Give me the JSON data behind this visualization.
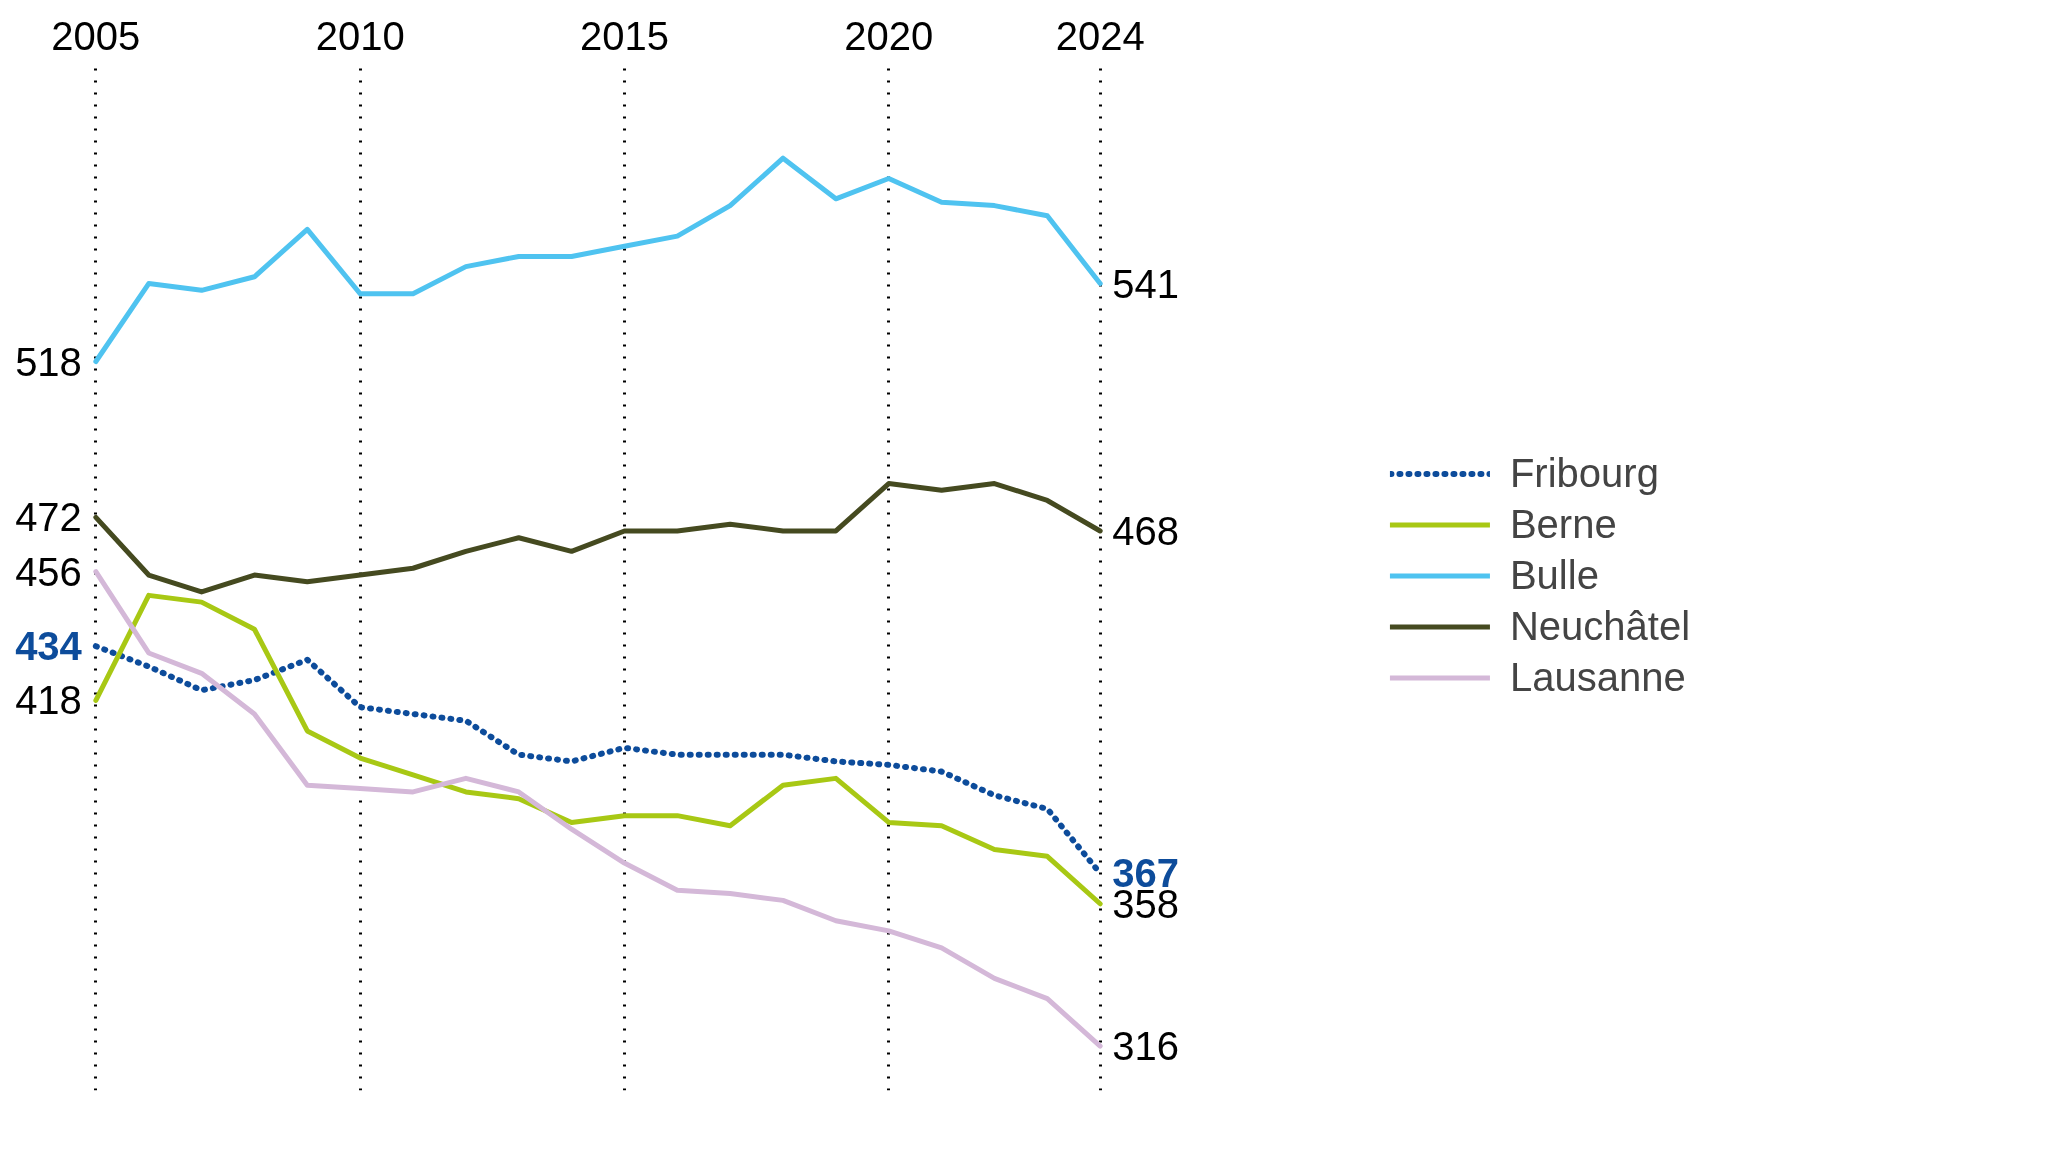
{
  "chart_data": {
    "type": "line",
    "x": [
      2005,
      2006,
      2007,
      2008,
      2009,
      2010,
      2011,
      2012,
      2013,
      2014,
      2015,
      2016,
      2017,
      2018,
      2019,
      2020,
      2021,
      2022,
      2023,
      2024
    ],
    "xlim": [
      2005,
      2024
    ],
    "xticks": [
      2005,
      2010,
      2015,
      2020,
      2024
    ],
    "grid": "x",
    "tick_labels": "x",
    "legend": "right",
    "series": [
      {
        "name": "Fribourg",
        "color": "#0d4c9b",
        "line_style": "dotted",
        "values": [
          434,
          428,
          421,
          424,
          430,
          416,
          414,
          412,
          402,
          400,
          404,
          402,
          402,
          402,
          400,
          399,
          397,
          390,
          386,
          367
        ],
        "value_labels": [
          "434",
          null,
          null,
          null,
          null,
          null,
          null,
          null,
          null,
          null,
          null,
          null,
          null,
          null,
          null,
          null,
          null,
          null,
          null,
          "367"
        ]
      },
      {
        "name": "Berne",
        "color": "#a8c814",
        "line_style": "solid",
        "values": [
          418,
          449,
          447,
          439,
          409,
          401,
          396,
          391,
          389,
          382,
          384,
          384,
          381,
          393,
          395,
          382,
          381,
          374,
          372,
          358
        ],
        "value_labels": [
          "418",
          null,
          null,
          null,
          null,
          null,
          null,
          null,
          null,
          null,
          null,
          null,
          null,
          null,
          null,
          null,
          null,
          null,
          null,
          "358"
        ]
      },
      {
        "name": "Bulle",
        "color": "#4fc3f0",
        "line_style": "solid",
        "values": [
          518,
          541,
          539,
          543,
          557,
          538,
          538,
          546,
          549,
          549,
          552,
          555,
          564,
          578,
          566,
          572,
          565,
          564,
          561,
          541
        ],
        "value_labels": [
          "518",
          null,
          null,
          null,
          null,
          null,
          null,
          null,
          null,
          null,
          null,
          null,
          null,
          null,
          null,
          null,
          null,
          null,
          null,
          "541"
        ]
      },
      {
        "name": "Neuchâtel",
        "color": "#454a20",
        "line_style": "solid",
        "values": [
          472,
          455,
          450,
          455,
          453,
          455,
          457,
          462,
          466,
          462,
          468,
          468,
          470,
          468,
          468,
          482,
          480,
          482,
          477,
          468
        ],
        "value_labels": [
          "472",
          null,
          null,
          null,
          null,
          null,
          null,
          null,
          null,
          null,
          null,
          null,
          null,
          null,
          null,
          null,
          null,
          null,
          null,
          "468"
        ]
      },
      {
        "name": "Lausanne",
        "color": "#d4b8d8",
        "line_style": "solid",
        "values": [
          456,
          432,
          426,
          414,
          393,
          392,
          391,
          395,
          391,
          380,
          370,
          362,
          361,
          359,
          353,
          350,
          345,
          336,
          330,
          316
        ],
        "value_labels": [
          "456",
          null,
          null,
          null,
          null,
          null,
          null,
          null,
          null,
          null,
          null,
          null,
          null,
          null,
          null,
          null,
          null,
          null,
          null,
          "316"
        ]
      }
    ]
  }
}
